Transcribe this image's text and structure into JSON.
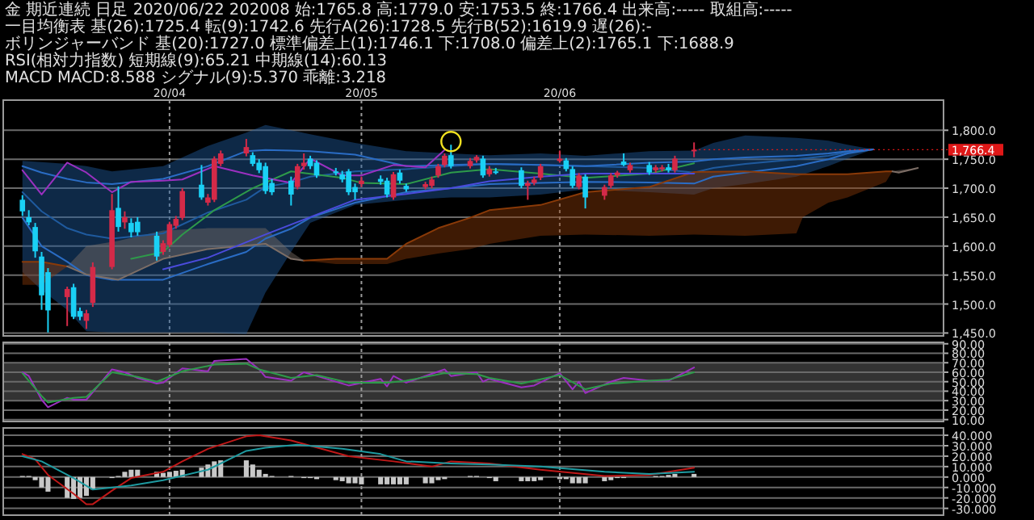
{
  "chart_data": [
    {
      "type": "candlestick",
      "title": "金 期近連続 日足 2020/06/22 202008 始:1765.8 高:1779.0 安:1753.5 終:1766.4 出来高:----- 取組高:-----",
      "annotations": [
        "一目均衡表 基(26):1725.4 転(9):1742.6 先行A(26):1728.5 先行B(52):1619.9 遅(26):-",
        "ボリンジャーバンド 基(20):1727.0 標準偏差上(1):1746.1 下:1708.0 偏差上(2):1765.1 下:1688.9",
        "RSI(相対力指数) 短期線(9):65.21 中期線(14):60.13",
        "MACD MACD:8.588 シグナル(9):5.370 乖離:3.218",
        {
          "text": "1,766.4",
          "x": "2020-06-22",
          "y": 1766.4
        }
      ],
      "x": [
        "2020-03-09",
        "2020-03-10",
        "2020-03-11",
        "2020-03-12",
        "2020-03-13",
        "2020-03-16",
        "2020-03-17",
        "2020-03-18",
        "2020-03-19",
        "2020-03-20",
        "2020-03-23",
        "2020-03-24",
        "2020-03-25",
        "2020-03-26",
        "2020-03-27",
        "2020-03-30",
        "2020-03-31",
        "2020-04-01",
        "2020-04-02",
        "2020-04-03",
        "2020-04-06",
        "2020-04-07",
        "2020-04-08",
        "2020-04-09",
        "2020-04-13",
        "2020-04-14",
        "2020-04-15",
        "2020-04-16",
        "2020-04-17",
        "2020-04-20",
        "2020-04-21",
        "2020-04-22",
        "2020-04-23",
        "2020-04-24",
        "2020-04-27",
        "2020-04-28",
        "2020-04-29",
        "2020-04-30",
        "2020-05-01",
        "2020-05-04",
        "2020-05-05",
        "2020-05-06",
        "2020-05-07",
        "2020-05-08",
        "2020-05-11",
        "2020-05-12",
        "2020-05-13",
        "2020-05-14",
        "2020-05-15",
        "2020-05-18",
        "2020-05-19",
        "2020-05-20",
        "2020-05-21",
        "2020-05-22",
        "2020-05-26",
        "2020-05-27",
        "2020-05-28",
        "2020-05-29",
        "2020-06-01",
        "2020-06-02",
        "2020-06-03",
        "2020-06-04",
        "2020-06-05",
        "2020-06-08",
        "2020-06-09",
        "2020-06-10",
        "2020-06-11",
        "2020-06-12",
        "2020-06-15",
        "2020-06-16",
        "2020-06-17",
        "2020-06-18",
        "2020-06-19",
        "2020-06-22"
      ],
      "ohlc": [
        [
          1680,
          1688,
          1652,
          1660
        ],
        [
          1650,
          1662,
          1636,
          1641
        ],
        [
          1633,
          1640,
          1580,
          1591
        ],
        [
          1582,
          1590,
          1490,
          1515
        ],
        [
          1555,
          1562,
          1451,
          1489
        ],
        [
          1512,
          1530,
          1462,
          1526
        ],
        [
          1529,
          1535,
          1474,
          1478
        ],
        [
          1488,
          1494,
          1472,
          1478
        ],
        [
          1471,
          1490,
          1457,
          1484
        ],
        [
          1502,
          1572,
          1495,
          1564
        ],
        [
          1564,
          1690,
          1560,
          1662
        ],
        [
          1666,
          1703,
          1625,
          1633
        ],
        [
          1641,
          1660,
          1630,
          1650
        ],
        [
          1640,
          1648,
          1615,
          1624
        ],
        [
          1642,
          1650,
          1618,
          1624
        ],
        [
          1618,
          1625,
          1575,
          1582
        ],
        [
          1590,
          1610,
          1585,
          1605
        ],
        [
          1602,
          1642,
          1598,
          1638
        ],
        [
          1635,
          1652,
          1630,
          1647
        ],
        [
          1649,
          1700,
          1645,
          1695
        ],
        [
          1706,
          1740,
          1680,
          1684
        ],
        [
          1675,
          1690,
          1670,
          1684
        ],
        [
          1680,
          1755,
          1676,
          1751
        ],
        [
          1742,
          1765,
          1738,
          1760
        ],
        [
          1760,
          1785,
          1755,
          1771
        ],
        [
          1757,
          1762,
          1738,
          1742
        ],
        [
          1744,
          1750,
          1726,
          1731
        ],
        [
          1738,
          1744,
          1690,
          1695
        ],
        [
          1709,
          1716,
          1688,
          1693
        ],
        [
          1713,
          1720,
          1670,
          1689
        ],
        [
          1702,
          1742,
          1698,
          1738
        ],
        [
          1738,
          1760,
          1732,
          1744
        ],
        [
          1751,
          1756,
          1733,
          1738
        ],
        [
          1744,
          1748,
          1718,
          1722
        ],
        [
          1729,
          1735,
          1722,
          1727
        ],
        [
          1724,
          1730,
          1710,
          1715
        ],
        [
          1729,
          1733,
          1688,
          1693
        ],
        [
          1702,
          1708,
          1680,
          1693
        ],
        [
          1707,
          1720,
          1702,
          1713
        ],
        [
          1716,
          1722,
          1706,
          1711
        ],
        [
          1713,
          1718,
          1684,
          1689
        ],
        [
          1684,
          1728,
          1680,
          1724
        ],
        [
          1727,
          1732,
          1708,
          1713
        ],
        [
          1704,
          1708,
          1694,
          1698
        ],
        [
          1702,
          1711,
          1698,
          1707
        ],
        [
          1704,
          1720,
          1700,
          1715
        ],
        [
          1722,
          1742,
          1718,
          1738
        ],
        [
          1740,
          1760,
          1736,
          1756
        ],
        [
          1757,
          1775,
          1734,
          1738
        ],
        [
          1738,
          1752,
          1734,
          1747
        ],
        [
          1748,
          1757,
          1744,
          1754
        ],
        [
          1751,
          1756,
          1718,
          1722
        ],
        [
          1724,
          1738,
          1720,
          1733
        ],
        [
          1729,
          1735,
          1724,
          1729
        ],
        [
          1731,
          1736,
          1700,
          1704
        ],
        [
          1704,
          1713,
          1680,
          1709
        ],
        [
          1709,
          1720,
          1705,
          1715
        ],
        [
          1718,
          1742,
          1714,
          1738
        ],
        [
          1747,
          1765,
          1744,
          1751
        ],
        [
          1748,
          1752,
          1729,
          1733
        ],
        [
          1733,
          1738,
          1700,
          1704
        ],
        [
          1702,
          1726,
          1698,
          1722
        ],
        [
          1720,
          1724,
          1665,
          1684
        ],
        [
          1687,
          1706,
          1680,
          1702
        ],
        [
          1704,
          1726,
          1700,
          1722
        ],
        [
          1722,
          1730,
          1718,
          1727
        ],
        [
          1746,
          1760,
          1738,
          1740
        ],
        [
          1731,
          1744,
          1727,
          1740
        ],
        [
          1740,
          1745,
          1723,
          1727
        ],
        [
          1731,
          1740,
          1727,
          1736
        ],
        [
          1733,
          1740,
          1729,
          1736
        ],
        [
          1736,
          1742,
          1727,
          1731
        ],
        [
          1731,
          1756,
          1727,
          1751
        ],
        [
          1765.8,
          1779,
          1753.5,
          1766.4
        ]
      ],
      "colors": [
        "#1ad0f5",
        "#1ad0f5",
        "#1ad0f5",
        "#1ad0f5",
        "#1ad0f5",
        "#d42a48",
        "#1ad0f5",
        "#1ad0f5",
        "#d42a48",
        "#d42a48",
        "#d42a48",
        "#1ad0f5",
        "#d42a48",
        "#1ad0f5",
        "#1ad0f5",
        "#1ad0f5",
        "#d42a48",
        "#d42a48",
        "#d42a48",
        "#d42a48",
        "#1ad0f5",
        "#d42a48",
        "#d42a48",
        "#d42a48",
        "#d42a48",
        "#1ad0f5",
        "#1ad0f5",
        "#1ad0f5",
        "#1ad0f5",
        "#1ad0f5",
        "#d42a48",
        "#d42a48",
        "#1ad0f5",
        "#1ad0f5",
        "#1ad0f5",
        "#1ad0f5",
        "#1ad0f5",
        "#1ad0f5",
        "#d42a48",
        "#1ad0f5",
        "#1ad0f5",
        "#d42a48",
        "#1ad0f5",
        "#1ad0f5",
        "#d42a48",
        "#d42a48",
        "#d42a48",
        "#d42a48",
        "#1ad0f5",
        "#d42a48",
        "#d42a48",
        "#1ad0f5",
        "#d42a48",
        "#1ad0f5",
        "#1ad0f5",
        "#d42a48",
        "#d42a48",
        "#d42a48",
        "#d42a48",
        "#1ad0f5",
        "#1ad0f5",
        "#d42a48",
        "#1ad0f5",
        "#d42a48",
        "#d42a48",
        "#d42a48",
        "#1ad0f5",
        "#d42a48",
        "#1ad0f5",
        "#d42a48",
        "#d42a48",
        "#1ad0f5",
        "#d42a48",
        "#d42a48"
      ],
      "xlim": [
        "2020-03-06",
        "2020-07-31"
      ],
      "xticks": [
        {
          "value": "2020-04-01",
          "label": "20/04"
        },
        {
          "value": "2020-05-01",
          "label": "20/05"
        },
        {
          "value": "2020-06-01",
          "label": "20/06"
        }
      ],
      "ylim": [
        1445,
        1852
      ],
      "yticks": [
        {
          "value": 1450,
          "label": "1,450.0"
        },
        {
          "value": 1500,
          "label": "1,500.0"
        },
        {
          "value": 1550,
          "label": "1,550.0"
        },
        {
          "value": 1600,
          "label": "1,600.0"
        },
        {
          "value": 1650,
          "label": "1,650.0"
        },
        {
          "value": 1700,
          "label": "1,700.0"
        },
        {
          "value": 1750,
          "label": "1,750.0"
        },
        {
          "value": 1800,
          "label": "1,800.0"
        }
      ],
      "grid": true,
      "series": [
        {
          "type": "line",
          "color": "#1f5a9e",
          "x": [
            "2020-03-09",
            "2020-03-12",
            "2020-03-16",
            "2020-03-19",
            "2020-03-23",
            "2020-03-31",
            "2020-04-07",
            "2020-04-13",
            "2020-04-16",
            "2020-04-20",
            "2020-04-23",
            "2020-04-30",
            "2020-05-08",
            "2020-05-15",
            "2020-05-21",
            "2020-05-29",
            "2020-06-05",
            "2020-06-15",
            "2020-06-22",
            "2020-06-25",
            "2020-06-30",
            "2020-07-08",
            "2020-07-13",
            "2020-07-16",
            "2020-07-20"
          ],
          "upper": [
            1747,
            1745,
            1742,
            1738,
            1729,
            1738,
            1773,
            1796,
            1809,
            1800,
            1793,
            1778,
            1764,
            1760,
            1757,
            1760,
            1756,
            1764,
            1765,
            1778,
            1791,
            1787,
            1782,
            1775,
            1767
          ],
          "lower": [
            1555,
            1524,
            1490,
            1453,
            1451,
            1451,
            1451,
            1448,
            1520,
            1590,
            1640,
            1671,
            1680,
            1684,
            1684,
            1689,
            1698,
            1693,
            1689,
            1700,
            1707,
            1720,
            1738,
            1751,
            1767
          ],
          "values": [
            1693,
            1660,
            1631,
            1620,
            1613,
            1622,
            1658,
            1680,
            1702,
            1710,
            1720,
            1729,
            1733,
            1738,
            1742,
            1740,
            1738,
            1735,
            1727,
            1735,
            1742,
            1750,
            1756,
            1762,
            1767
          ]
        },
        {
          "type": "line",
          "color": "#2a6cc4",
          "x": [
            "2020-03-09",
            "2020-03-12",
            "2020-03-16",
            "2020-03-19",
            "2020-03-23",
            "2020-03-31",
            "2020-04-07",
            "2020-04-13",
            "2020-04-16",
            "2020-04-20",
            "2020-04-23",
            "2020-04-30",
            "2020-05-08",
            "2020-05-15",
            "2020-05-21",
            "2020-05-29",
            "2020-06-05",
            "2020-06-15",
            "2020-06-22",
            "2020-06-25",
            "2020-06-30",
            "2020-07-08",
            "2020-07-13",
            "2020-07-16",
            "2020-07-20"
          ],
          "values": [
            1738,
            1727,
            1716,
            1710,
            1707,
            1716,
            1738,
            1764,
            1766,
            1765,
            1764,
            1758,
            1738,
            1740,
            1742,
            1740,
            1738,
            1744,
            1746,
            1750,
            1753,
            1756,
            1760,
            1764,
            1767
          ]
        },
        {
          "type": "line",
          "color": "#2a6cc4",
          "x": [
            "2020-03-09",
            "2020-03-12",
            "2020-03-16",
            "2020-03-19",
            "2020-03-23",
            "2020-03-31",
            "2020-04-07",
            "2020-04-13",
            "2020-04-16",
            "2020-04-20",
            "2020-04-23",
            "2020-04-30",
            "2020-05-08",
            "2020-05-15",
            "2020-05-21",
            "2020-05-29",
            "2020-06-05",
            "2020-06-15",
            "2020-06-22",
            "2020-06-25",
            "2020-06-30",
            "2020-07-08",
            "2020-07-13",
            "2020-07-16",
            "2020-07-20"
          ],
          "values": [
            1649,
            1600,
            1573,
            1550,
            1542,
            1542,
            1569,
            1590,
            1613,
            1630,
            1649,
            1675,
            1693,
            1700,
            1707,
            1709,
            1711,
            1710,
            1708,
            1720,
            1727,
            1738,
            1750,
            1760,
            1767
          ]
        },
        {
          "type": "line",
          "color": "#8a3a08",
          "x": [
            "2020-03-09",
            "2020-03-12",
            "2020-03-16"
          ],
          "values": [
            1573,
            1573,
            1565
          ],
          "upper": [
            1573,
            1573,
            1565
          ],
          "lower": [
            1533,
            1533,
            1565
          ]
        },
        {
          "type": "line",
          "color": "#7d6e66",
          "x": [
            "2020-03-16",
            "2020-03-19",
            "2020-03-24",
            "2020-03-31",
            "2020-04-07",
            "2020-04-16",
            "2020-04-20",
            "2020-04-22"
          ],
          "values": [
            1565,
            1551,
            1542,
            1578,
            1595,
            1604,
            1578,
            1575
          ],
          "upper": [
            1565,
            1600,
            1609,
            1627,
            1631,
            1631,
            1590,
            1575
          ],
          "lower": [
            1565,
            1551,
            1542,
            1578,
            1595,
            1604,
            1578,
            1575
          ]
        },
        {
          "type": "line",
          "color": "#8a3a08",
          "x": [
            "2020-04-22",
            "2020-04-27",
            "2020-05-05",
            "2020-05-08",
            "2020-05-13",
            "2020-05-18",
            "2020-05-21",
            "2020-05-29",
            "2020-06-05",
            "2020-06-15",
            "2020-06-22",
            "2020-06-30",
            "2020-07-08",
            "2020-07-09",
            "2020-07-13",
            "2020-07-16",
            "2020-07-22",
            "2020-07-23"
          ],
          "values": [
            1575,
            1578,
            1578,
            1604,
            1631,
            1649,
            1662,
            1671,
            1693,
            1702,
            1728,
            1729,
            1724,
            1724,
            1724,
            1724,
            1729,
            1729
          ],
          "upper": [
            1575,
            1578,
            1578,
            1604,
            1631,
            1649,
            1662,
            1671,
            1693,
            1702,
            1728,
            1729,
            1724,
            1724,
            1724,
            1724,
            1729,
            1729
          ],
          "lower": [
            1575,
            1569,
            1569,
            1578,
            1587,
            1595,
            1604,
            1618,
            1620,
            1618,
            1620,
            1618,
            1622,
            1650,
            1675,
            1684,
            1711,
            1729
          ]
        },
        {
          "type": "line",
          "color": "#7d6e66",
          "x": [
            "2020-07-23",
            "2020-07-24",
            "2020-07-27"
          ],
          "values": [
            1729,
            1727,
            1735
          ],
          "upper": [
            1729,
            1731,
            1735
          ],
          "lower": [
            1729,
            1727,
            1735
          ]
        },
        {
          "type": "line",
          "color": "#2e9a4a",
          "x": [
            "2020-03-26",
            "2020-03-31",
            "2020-04-03",
            "2020-04-08",
            "2020-04-14",
            "2020-04-20",
            "2020-04-28",
            "2020-05-01",
            "2020-05-08",
            "2020-05-15",
            "2020-05-21",
            "2020-05-29",
            "2020-06-05",
            "2020-06-15",
            "2020-06-22"
          ],
          "values": [
            1578,
            1590,
            1620,
            1662,
            1700,
            1729,
            1718,
            1709,
            1707,
            1727,
            1733,
            1725,
            1718,
            1725,
            1743
          ]
        },
        {
          "type": "line",
          "color": "#4b4bdc",
          "x": [
            "2020-03-31",
            "2020-04-07",
            "2020-04-16",
            "2020-04-23",
            "2020-04-30",
            "2020-05-08",
            "2020-05-15",
            "2020-05-21",
            "2020-05-29",
            "2020-06-05",
            "2020-06-15",
            "2020-06-22"
          ],
          "values": [
            1560,
            1580,
            1620,
            1650,
            1680,
            1690,
            1700,
            1712,
            1720,
            1725,
            1725,
            1725
          ]
        },
        {
          "type": "line",
          "color": "#9b30c0",
          "x": [
            "2020-03-09",
            "2020-03-12",
            "2020-03-16",
            "2020-03-19",
            "2020-03-23",
            "2020-03-26",
            "2020-03-31",
            "2020-04-03",
            "2020-04-08",
            "2020-04-14",
            "2020-04-20",
            "2020-04-23",
            "2020-04-28",
            "2020-05-01",
            "2020-05-06",
            "2020-05-11",
            "2020-05-14"
          ],
          "values": [
            1731,
            1689,
            1744,
            1727,
            1693,
            1711,
            1713,
            1715,
            1738,
            1722,
            1709,
            1751,
            1722,
            1722,
            1740,
            1736,
            1766
          ]
        }
      ]
    },
    {
      "type": "line",
      "xlim": [
        "2020-03-06",
        "2020-07-31"
      ],
      "xticks": [
        {
          "value": "2020-04-01",
          "label": null
        },
        {
          "value": "2020-05-01",
          "label": null
        },
        {
          "value": "2020-06-01",
          "label": null
        }
      ],
      "tick_labels": "y",
      "ylim": [
        8,
        91.5
      ],
      "yticks": [
        {
          "value": 10,
          "label": "10.00"
        },
        {
          "value": 20,
          "label": "20.00"
        },
        {
          "value": 30,
          "label": "30.00"
        },
        {
          "value": 40,
          "label": "40.00"
        },
        {
          "value": 50,
          "label": "50.00"
        },
        {
          "value": 60,
          "label": "60.00"
        },
        {
          "value": 70,
          "label": "70.00"
        },
        {
          "value": 80,
          "label": "80.00"
        },
        {
          "value": 90,
          "label": "90.00"
        }
      ],
      "grid": true,
      "bands": [
        {
          "axis": "y",
          "from": 30,
          "to": 70,
          "color": "#333333"
        }
      ],
      "series": [
        {
          "color": "#9b30c0",
          "x": [
            "2020-03-09",
            "2020-03-10",
            "2020-03-12",
            "2020-03-13",
            "2020-03-16",
            "2020-03-17",
            "2020-03-19",
            "2020-03-23",
            "2020-03-25",
            "2020-03-27",
            "2020-03-30",
            "2020-03-31",
            "2020-04-03",
            "2020-04-07",
            "2020-04-08",
            "2020-04-13",
            "2020-04-15",
            "2020-04-16",
            "2020-04-20",
            "2020-04-22",
            "2020-04-24",
            "2020-04-29",
            "2020-05-04",
            "2020-05-05",
            "2020-05-06",
            "2020-05-08",
            "2020-05-14",
            "2020-05-15",
            "2020-05-19",
            "2020-05-20",
            "2020-05-21",
            "2020-05-26",
            "2020-05-28",
            "2020-06-01",
            "2020-06-03",
            "2020-06-04",
            "2020-06-05",
            "2020-06-09",
            "2020-06-11",
            "2020-06-15",
            "2020-06-18",
            "2020-06-22"
          ],
          "values": [
            60,
            56,
            31,
            23,
            33,
            31,
            31,
            63,
            60,
            54,
            48,
            49,
            64,
            61,
            72,
            74,
            63,
            55,
            51,
            60,
            56,
            46,
            53,
            45,
            56,
            49,
            63,
            56,
            60,
            50,
            53,
            44,
            46,
            59,
            42,
            50,
            38,
            50,
            54,
            51,
            51,
            65
          ]
        },
        {
          "color": "#2e9a4a",
          "x": [
            "2020-03-09",
            "2020-03-12",
            "2020-03-13",
            "2020-03-17",
            "2020-03-19",
            "2020-03-23",
            "2020-03-27",
            "2020-03-30",
            "2020-04-03",
            "2020-04-08",
            "2020-04-13",
            "2020-04-15",
            "2020-04-20",
            "2020-04-24",
            "2020-04-29",
            "2020-05-05",
            "2020-05-08",
            "2020-05-14",
            "2020-05-19",
            "2020-05-21",
            "2020-05-26",
            "2020-06-01",
            "2020-06-05",
            "2020-06-09",
            "2020-06-15",
            "2020-06-18",
            "2020-06-22"
          ],
          "values": [
            59,
            35,
            28,
            33,
            34,
            60,
            55,
            50,
            61,
            68,
            69,
            63,
            54,
            57,
            49,
            49,
            51,
            59,
            58,
            54,
            48,
            57,
            42,
            48,
            51,
            52,
            60
          ]
        }
      ]
    },
    {
      "type": "bar",
      "xlim": [
        "2020-03-06",
        "2020-07-31"
      ],
      "xticks": [
        {
          "value": "2020-04-01",
          "label": null
        },
        {
          "value": "2020-05-01",
          "label": null
        },
        {
          "value": "2020-06-01",
          "label": null
        }
      ],
      "tick_labels": "y",
      "ylim": [
        -36.5,
        47
      ],
      "yticks": [
        {
          "value": -30,
          "label": "-30.000"
        },
        {
          "value": -20,
          "label": "-20.000"
        },
        {
          "value": -10,
          "label": "-10.000"
        },
        {
          "value": 0,
          "label": "0.000"
        },
        {
          "value": 10,
          "label": "10.000"
        },
        {
          "value": 20,
          "label": "20.000"
        },
        {
          "value": 30,
          "label": "30.000"
        },
        {
          "value": 40,
          "label": "40.000"
        }
      ],
      "grid": true,
      "series": [
        {
          "type": "bar",
          "color": "#c8c8c8",
          "x": [
            "2020-03-09",
            "2020-03-10",
            "2020-03-11",
            "2020-03-12",
            "2020-03-13",
            "2020-03-16",
            "2020-03-17",
            "2020-03-18",
            "2020-03-19",
            "2020-03-20",
            "2020-03-23",
            "2020-03-24",
            "2020-03-25",
            "2020-03-26",
            "2020-03-27",
            "2020-03-30",
            "2020-03-31",
            "2020-04-01",
            "2020-04-02",
            "2020-04-03",
            "2020-04-06",
            "2020-04-07",
            "2020-04-08",
            "2020-04-09",
            "2020-04-13",
            "2020-04-14",
            "2020-04-15",
            "2020-04-16",
            "2020-04-17",
            "2020-04-20",
            "2020-04-21",
            "2020-04-22",
            "2020-04-23",
            "2020-04-24",
            "2020-04-27",
            "2020-04-28",
            "2020-04-29",
            "2020-04-30",
            "2020-05-01",
            "2020-05-04",
            "2020-05-05",
            "2020-05-06",
            "2020-05-07",
            "2020-05-08",
            "2020-05-11",
            "2020-05-12",
            "2020-05-13",
            "2020-05-14",
            "2020-05-15",
            "2020-05-18",
            "2020-05-19",
            "2020-05-20",
            "2020-05-21",
            "2020-05-22",
            "2020-05-26",
            "2020-05-27",
            "2020-05-28",
            "2020-05-29",
            "2020-06-01",
            "2020-06-02",
            "2020-06-03",
            "2020-06-04",
            "2020-06-05",
            "2020-06-08",
            "2020-06-09",
            "2020-06-10",
            "2020-06-11",
            "2020-06-12",
            "2020-06-15",
            "2020-06-16",
            "2020-06-17",
            "2020-06-18",
            "2020-06-19",
            "2020-06-22"
          ],
          "values": [
            1,
            1,
            -3,
            -10,
            -14,
            -20,
            -21,
            -20,
            -18,
            -12,
            -1,
            1,
            5,
            7,
            7,
            5,
            4,
            5,
            6,
            7,
            9,
            12,
            15,
            16,
            16,
            12,
            7,
            3,
            1,
            1,
            0,
            -1,
            -1,
            -2,
            -3,
            -4,
            -6,
            -6,
            -7,
            -7,
            -7,
            -7,
            -7,
            -7,
            -6,
            -6,
            -3,
            -2,
            0,
            1,
            1,
            0,
            -1,
            -4,
            -4,
            -4,
            -4,
            -3,
            -2,
            -2,
            -6,
            -6,
            -6,
            -4,
            -3,
            -1,
            -1,
            0,
            0,
            1,
            1,
            2,
            3,
            3
          ]
        },
        {
          "type": "line",
          "color": "#c01818",
          "x": [
            "2020-03-09",
            "2020-03-11",
            "2020-03-13",
            "2020-03-17",
            "2020-03-19",
            "2020-03-20",
            "2020-03-23",
            "2020-03-26",
            "2020-03-31",
            "2020-04-03",
            "2020-04-07",
            "2020-04-13",
            "2020-04-15",
            "2020-04-20",
            "2020-04-23",
            "2020-04-29",
            "2020-05-06",
            "2020-05-12",
            "2020-05-15",
            "2020-05-21",
            "2020-05-29",
            "2020-06-08",
            "2020-06-15",
            "2020-06-22"
          ],
          "values": [
            22,
            17,
            2,
            -16,
            -26,
            -26,
            -13,
            -1,
            5,
            15,
            27,
            39,
            40,
            35,
            30,
            20,
            15,
            10,
            15,
            13,
            7,
            1,
            2,
            9
          ]
        },
        {
          "type": "line",
          "color": "#1e9aa0",
          "x": [
            "2020-03-09",
            "2020-03-12",
            "2020-03-17",
            "2020-03-20",
            "2020-03-26",
            "2020-03-31",
            "2020-04-07",
            "2020-04-13",
            "2020-04-16",
            "2020-04-21",
            "2020-04-28",
            "2020-05-04",
            "2020-05-08",
            "2020-05-15",
            "2020-05-21",
            "2020-05-29",
            "2020-06-08",
            "2020-06-15",
            "2020-06-22"
          ],
          "values": [
            20,
            15,
            -1,
            -12,
            -8,
            -3,
            7,
            25,
            28,
            31,
            27,
            22,
            15,
            13,
            12,
            10,
            5,
            3,
            5
          ]
        }
      ]
    }
  ]
}
